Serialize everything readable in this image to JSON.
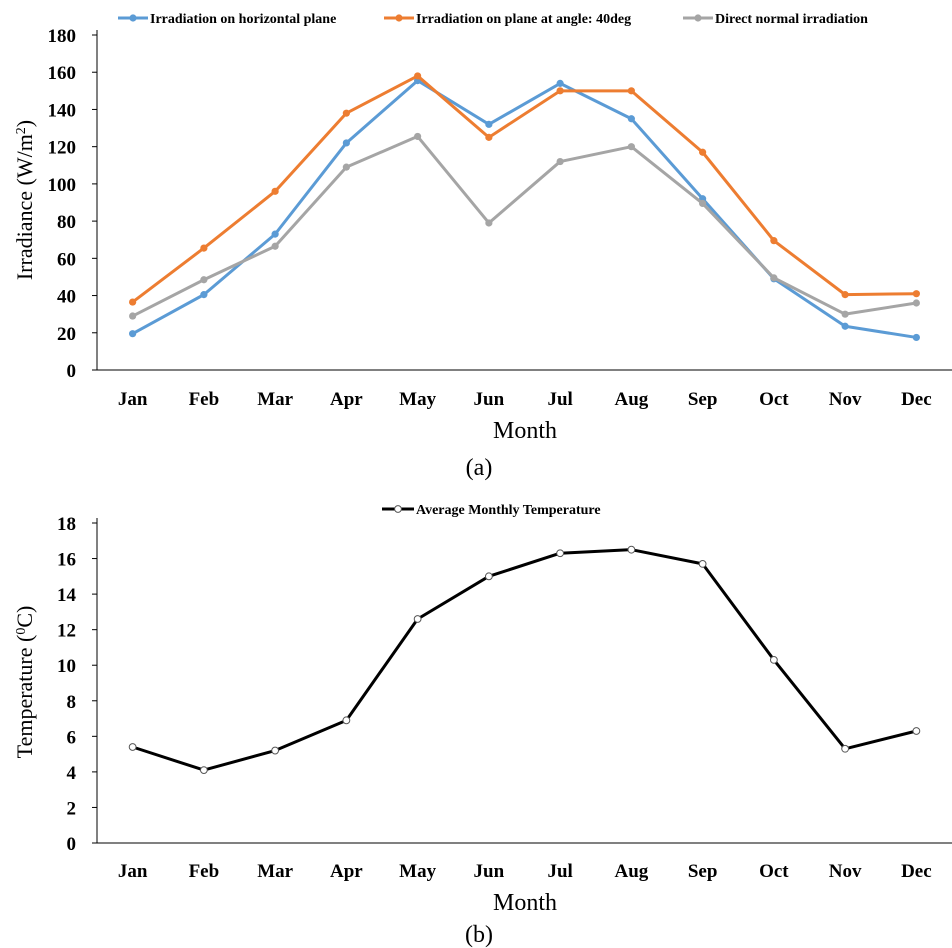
{
  "chart_data": [
    {
      "type": "line",
      "legend_position": "top",
      "grid": false,
      "xlabel": "Month",
      "ylabel": "Irradiance (W/m²)",
      "ylim": [
        0,
        180
      ],
      "yticks": [
        0,
        20,
        40,
        60,
        80,
        100,
        120,
        140,
        160,
        180
      ],
      "caption": "(a)",
      "categories": [
        "Jan",
        "Feb",
        "Mar",
        "Apr",
        "May",
        "Jun",
        "Jul",
        "Aug",
        "Sep",
        "Oct",
        "Nov",
        "Dec"
      ],
      "series": [
        {
          "name": "Irradiation on horizontal plane",
          "color": "#5b9bd5",
          "values": [
            19.5,
            40.5,
            73,
            122,
            155.5,
            132,
            154,
            135,
            92,
            49,
            23.5,
            17.5
          ]
        },
        {
          "name": "Irradiation on plane at angle: 40deg",
          "color": "#ed7d31",
          "values": [
            36.5,
            65.5,
            96,
            138,
            158,
            125,
            150,
            150,
            117,
            69.5,
            40.5,
            41
          ]
        },
        {
          "name": "Direct normal irradiation",
          "color": "#a5a5a5",
          "values": [
            29,
            48.5,
            66.5,
            109,
            125.5,
            79,
            112,
            120,
            89.5,
            49.5,
            30,
            36
          ]
        }
      ]
    },
    {
      "type": "line",
      "legend_position": "top",
      "grid": false,
      "xlabel": "Month",
      "ylabel": "Temperature (⁰C)",
      "ylim": [
        0,
        18
      ],
      "yticks": [
        0,
        2,
        4,
        6,
        8,
        10,
        12,
        14,
        16,
        18
      ],
      "caption": "(b)",
      "categories": [
        "Jan",
        "Feb",
        "Mar",
        "Apr",
        "May",
        "Jun",
        "Jul",
        "Aug",
        "Sep",
        "Oct",
        "Nov",
        "Dec"
      ],
      "series": [
        {
          "name": "Average Monthly Temperature",
          "color": "#000000",
          "values": [
            5.4,
            4.1,
            5.2,
            6.9,
            12.6,
            15.0,
            16.3,
            16.5,
            15.7,
            10.3,
            5.3,
            6.3
          ]
        }
      ]
    }
  ]
}
